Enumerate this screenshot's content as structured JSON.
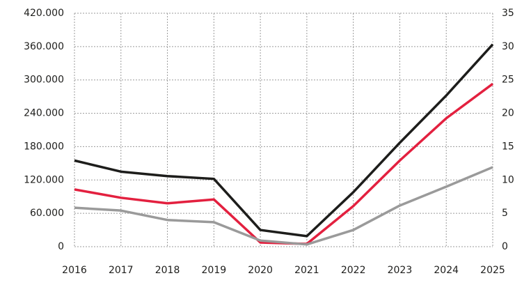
{
  "chart_data": {
    "type": "line",
    "categories": [
      "2016",
      "2017",
      "2018",
      "2019",
      "2020",
      "2021",
      "2022",
      "2023",
      "2024",
      "2025"
    ],
    "series": [
      {
        "color": "#1d1d1b",
        "values": [
          155000,
          135000,
          127000,
          122000,
          30000,
          19000,
          98000,
          187000,
          272000,
          364000
        ]
      },
      {
        "color": "#e3203f",
        "values": [
          103000,
          88000,
          78000,
          85000,
          7500,
          5000,
          73000,
          155000,
          231000,
          293000
        ]
      },
      {
        "color": "#9a9a9a",
        "values": [
          70000,
          65000,
          48000,
          44000,
          11000,
          4000,
          30000,
          74000,
          108000,
          143000
        ]
      }
    ],
    "ylim": [
      0,
      420000
    ],
    "yticks": [
      0,
      {
        "value": 60000,
        "label": "60.000"
      },
      {
        "value": 120000,
        "label": "120.000"
      },
      {
        "value": 180000,
        "label": "180.000"
      },
      {
        "value": 240000,
        "label": "240.000"
      },
      {
        "value": 300000,
        "label": "300.000"
      },
      {
        "value": 360000,
        "label": "360.000"
      },
      {
        "value": 420000,
        "label": "420.000"
      }
    ],
    "y2lim": [
      0,
      35
    ],
    "y2ticks": [
      0,
      5,
      10,
      15,
      20,
      25,
      30,
      35
    ],
    "grid": true
  }
}
